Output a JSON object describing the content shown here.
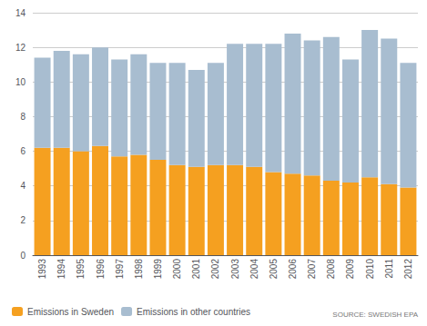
{
  "chart_data": {
    "type": "bar",
    "stacked": true,
    "categories": [
      "1993",
      "1994",
      "1995",
      "1996",
      "1997",
      "1998",
      "1999",
      "2000",
      "2001",
      "2002",
      "2003",
      "2004",
      "2005",
      "2006",
      "2007",
      "2008",
      "2009",
      "2010",
      "2011",
      "2012"
    ],
    "series": [
      {
        "name": "Emissions in Sweden",
        "color": "#F5A020",
        "values": [
          6.2,
          6.2,
          6.0,
          6.3,
          5.7,
          5.8,
          5.5,
          5.2,
          5.1,
          5.2,
          5.2,
          5.1,
          4.8,
          4.7,
          4.6,
          4.3,
          4.2,
          4.5,
          4.1,
          3.9
        ]
      },
      {
        "name": "Emissions in other countries",
        "color": "#A8BDD0",
        "values": [
          5.2,
          5.6,
          5.6,
          5.7,
          5.6,
          5.8,
          5.6,
          5.9,
          5.6,
          5.9,
          7.0,
          7.1,
          7.4,
          8.1,
          7.8,
          8.3,
          7.1,
          8.5,
          8.4,
          7.2
        ]
      }
    ],
    "ylim": [
      0,
      14
    ],
    "yticks": [
      0,
      2,
      4,
      6,
      8,
      10,
      12,
      14
    ],
    "grid": true,
    "legend": "lower left",
    "annotations": [
      "SOURCE: SWEDISH EPA"
    ]
  }
}
